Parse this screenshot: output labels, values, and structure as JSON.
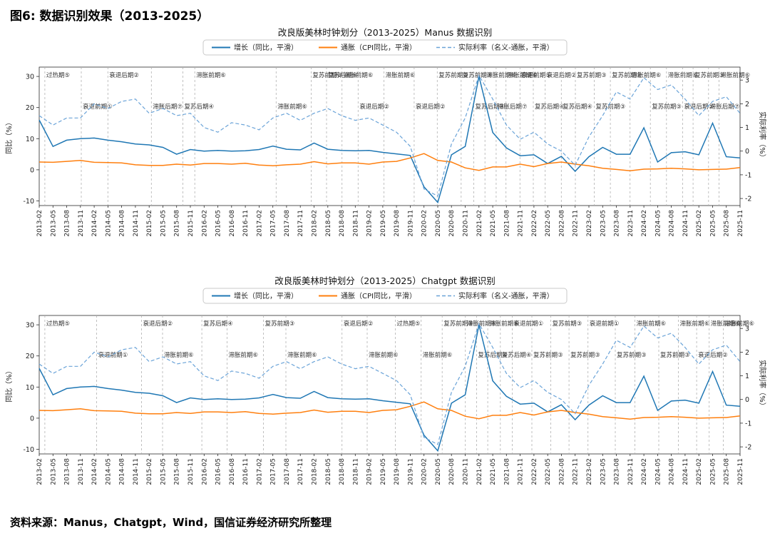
{
  "figure_title": "图6: 数据识别效果（2013-2025）",
  "source": "资料来源：Manus，Chatgpt，Wind，国信证券经济研究所整理",
  "legend": [
    {
      "label": "增长（同比，平滑）",
      "color": "#1f77b4",
      "style": "solid"
    },
    {
      "label": "通胀（CPI同比，平滑）",
      "color": "#ff7f0e",
      "style": "solid"
    },
    {
      "label": "实际利率（名义-通胀，平滑）",
      "color": "#6aa3d8",
      "style": "dashed"
    }
  ],
  "axis": {
    "left_label": "同比（%）",
    "right_label": "实际利率（%）",
    "left_ticks": [
      30,
      20,
      10,
      0,
      -10
    ],
    "right_ticks": [
      3,
      2,
      1,
      0,
      -1,
      -2
    ]
  },
  "chart_data": [
    {
      "type": "line",
      "title": "改良版美林时钟划分（2013-2025）Manus 数据识别",
      "ylim_left": [
        -11.5,
        33
      ],
      "ylim_right": [
        -2.3,
        3.55
      ],
      "x": [
        "2013-02",
        "2013-05",
        "2013-08",
        "2013-11",
        "2014-02",
        "2014-05",
        "2014-08",
        "2014-11",
        "2015-02",
        "2015-05",
        "2015-08",
        "2015-11",
        "2016-02",
        "2016-05",
        "2016-08",
        "2016-11",
        "2017-02",
        "2017-05",
        "2017-08",
        "2017-11",
        "2018-02",
        "2018-05",
        "2018-08",
        "2018-11",
        "2019-02",
        "2019-05",
        "2019-08",
        "2019-11",
        "2020-02",
        "2020-05",
        "2020-08",
        "2020-11",
        "2021-02",
        "2021-05",
        "2021-08",
        "2021-11",
        "2022-02",
        "2022-05",
        "2022-08",
        "2022-11",
        "2023-02",
        "2023-05",
        "2023-08",
        "2023-11",
        "2024-02",
        "2024-05",
        "2024-08",
        "2024-11",
        "2025-02",
        "2025-05",
        "2025-08",
        "2025-11"
      ],
      "series": [
        {
          "key": "growth",
          "name": "增长（同比，平滑）",
          "axis": "left",
          "style": "solid",
          "color": "#1f77b4",
          "values": [
            16,
            7.5,
            9.5,
            10,
            10.2,
            9.5,
            9,
            8.3,
            8,
            7.2,
            5,
            6.5,
            6,
            6.2,
            6,
            6.1,
            6.5,
            7.6,
            6.6,
            6.4,
            8.6,
            6.6,
            6.2,
            6.1,
            6.2,
            5.6,
            5.1,
            4.6,
            -5.5,
            -10.5,
            4.8,
            7.5,
            30,
            12,
            7,
            4.5,
            4.8,
            2,
            4.3,
            -0.5,
            4.2,
            7.2,
            5,
            5,
            13.5,
            2.5,
            5.5,
            5.8,
            4.8,
            15,
            4.2,
            3.8
          ]
        },
        {
          "key": "inflation",
          "name": "通胀（CPI同比，平滑）",
          "axis": "left",
          "style": "solid",
          "color": "#ff7f0e",
          "values": [
            2.5,
            2.4,
            2.7,
            3.0,
            2.4,
            2.3,
            2.2,
            1.6,
            1.4,
            1.4,
            1.8,
            1.5,
            2.0,
            2.0,
            1.8,
            2.1,
            1.5,
            1.3,
            1.6,
            1.8,
            2.6,
            1.9,
            2.2,
            2.2,
            1.8,
            2.5,
            2.7,
            3.8,
            5.2,
            3.0,
            2.5,
            0.6,
            -0.2,
            0.9,
            0.9,
            1.8,
            1.0,
            2.0,
            2.5,
            1.8,
            1.3,
            0.5,
            0.1,
            -0.3,
            0.2,
            0.3,
            0.5,
            0.3,
            0.0,
            0.1,
            0.2,
            0.7
          ]
        },
        {
          "key": "real_rate",
          "name": "实际利率（名义-通胀，平滑）",
          "axis": "right",
          "style": "dashed",
          "color": "#6aa3d8",
          "values": [
            1.5,
            1.1,
            1.4,
            1.4,
            2.0,
            1.8,
            2.1,
            2.2,
            1.6,
            1.8,
            1.5,
            1.6,
            1.0,
            0.8,
            1.2,
            1.1,
            0.9,
            1.4,
            1.6,
            1.3,
            1.6,
            1.8,
            1.5,
            1.3,
            1.4,
            1.1,
            0.8,
            0.2,
            -1.6,
            -1.9,
            0.3,
            1.4,
            3.2,
            2.2,
            1.1,
            0.5,
            0.8,
            0.3,
            0.0,
            -0.6,
            0.6,
            1.5,
            2.5,
            2.2,
            3.1,
            2.6,
            2.8,
            2.2,
            1.5,
            2.1,
            2.3,
            1.6
          ]
        }
      ],
      "annotations": [
        {
          "x": 0.008,
          "level": 1,
          "label": "过热期⑤"
        },
        {
          "x": 0.06,
          "level": 2,
          "label": "衰退前期①"
        },
        {
          "x": 0.098,
          "level": 1,
          "label": "衰退后期②"
        },
        {
          "x": 0.16,
          "level": 2,
          "label": "滞胀后期⑦"
        },
        {
          "x": 0.205,
          "level": 2,
          "label": "复苏后期④"
        },
        {
          "x": 0.222,
          "level": 1,
          "label": "滞胀前期⑥"
        },
        {
          "x": 0.338,
          "level": 2,
          "label": "滞胀前期⑥"
        },
        {
          "x": 0.388,
          "level": 1,
          "label": "复苏前期③"
        },
        {
          "x": 0.41,
          "level": 1,
          "label": "复苏后期④"
        },
        {
          "x": 0.432,
          "level": 1,
          "label": "滞胀前期⑥"
        },
        {
          "x": 0.455,
          "level": 2,
          "label": "衰退后期②"
        },
        {
          "x": 0.492,
          "level": 1,
          "label": "滞胀前期⑥"
        },
        {
          "x": 0.535,
          "level": 2,
          "label": "衰退后期②"
        },
        {
          "x": 0.568,
          "level": 1,
          "label": "复苏前期③"
        },
        {
          "x": 0.602,
          "level": 1,
          "label": "复苏前期③"
        },
        {
          "x": 0.62,
          "level": 2,
          "label": "复苏后期④"
        },
        {
          "x": 0.636,
          "level": 1,
          "label": "滞胀前期⑥"
        },
        {
          "x": 0.652,
          "level": 2,
          "label": "滞胀后期⑦"
        },
        {
          "x": 0.666,
          "level": 1,
          "label": "滞胀前期⑥"
        },
        {
          "x": 0.686,
          "level": 1,
          "label": "衰退前期①"
        },
        {
          "x": 0.705,
          "level": 2,
          "label": "复苏后期④"
        },
        {
          "x": 0.722,
          "level": 1,
          "label": "衰退后期②"
        },
        {
          "x": 0.745,
          "level": 2,
          "label": "复苏后期④"
        },
        {
          "x": 0.765,
          "level": 1,
          "label": "复苏前期③"
        },
        {
          "x": 0.792,
          "level": 2,
          "label": "复苏前期③"
        },
        {
          "x": 0.815,
          "level": 1,
          "label": "复苏前期③"
        },
        {
          "x": 0.843,
          "level": 1,
          "label": "滞胀前期⑥"
        },
        {
          "x": 0.872,
          "level": 2,
          "label": "复苏前期③"
        },
        {
          "x": 0.895,
          "level": 1,
          "label": "滞胀前期⑥"
        },
        {
          "x": 0.918,
          "level": 2,
          "label": "衰退后期②"
        },
        {
          "x": 0.933,
          "level": 1,
          "label": "复苏前期③"
        },
        {
          "x": 0.955,
          "level": 2,
          "label": "滞胀后期⑦"
        },
        {
          "x": 0.97,
          "level": 1,
          "label": "滞胀前期⑥"
        }
      ]
    },
    {
      "type": "line",
      "title": "改良版美林时钟划分（2013-2025）Chatgpt 数据识别",
      "ylim_left": [
        -11.5,
        33
      ],
      "ylim_right": [
        -2.3,
        3.55
      ],
      "x": [
        "2013-02",
        "2013-05",
        "2013-08",
        "2013-11",
        "2014-02",
        "2014-05",
        "2014-08",
        "2014-11",
        "2015-02",
        "2015-05",
        "2015-08",
        "2015-11",
        "2016-02",
        "2016-05",
        "2016-08",
        "2016-11",
        "2017-02",
        "2017-05",
        "2017-08",
        "2017-11",
        "2018-02",
        "2018-05",
        "2018-08",
        "2018-11",
        "2019-02",
        "2019-05",
        "2019-08",
        "2019-11",
        "2020-02",
        "2020-05",
        "2020-08",
        "2020-11",
        "2021-02",
        "2021-05",
        "2021-08",
        "2021-11",
        "2022-02",
        "2022-05",
        "2022-08",
        "2022-11",
        "2023-02",
        "2023-05",
        "2023-08",
        "2023-11",
        "2024-02",
        "2024-05",
        "2024-08",
        "2024-11",
        "2025-02",
        "2025-05",
        "2025-08",
        "2025-11"
      ],
      "series": [
        {
          "key": "growth",
          "name": "增长（同比，平滑）",
          "axis": "left",
          "style": "solid",
          "color": "#1f77b4",
          "values": [
            16,
            7.5,
            9.5,
            10,
            10.2,
            9.5,
            9,
            8.3,
            8,
            7.2,
            5,
            6.5,
            6,
            6.2,
            6,
            6.1,
            6.5,
            7.6,
            6.6,
            6.4,
            8.6,
            6.6,
            6.2,
            6.1,
            6.2,
            5.6,
            5.1,
            4.6,
            -5.5,
            -10.5,
            4.8,
            7.5,
            30,
            12,
            7,
            4.5,
            4.8,
            2,
            4.3,
            -0.5,
            4.2,
            7.2,
            5,
            5,
            13.5,
            2.5,
            5.5,
            5.8,
            4.8,
            15,
            4.2,
            3.8
          ]
        },
        {
          "key": "inflation",
          "name": "通胀（CPI同比，平滑）",
          "axis": "left",
          "style": "solid",
          "color": "#ff7f0e",
          "values": [
            2.5,
            2.4,
            2.7,
            3.0,
            2.4,
            2.3,
            2.2,
            1.6,
            1.4,
            1.4,
            1.8,
            1.5,
            2.0,
            2.0,
            1.8,
            2.1,
            1.5,
            1.3,
            1.6,
            1.8,
            2.6,
            1.9,
            2.2,
            2.2,
            1.8,
            2.5,
            2.7,
            3.8,
            5.2,
            3.0,
            2.5,
            0.6,
            -0.2,
            0.9,
            0.9,
            1.8,
            1.0,
            2.0,
            2.5,
            1.8,
            1.3,
            0.5,
            0.1,
            -0.3,
            0.2,
            0.3,
            0.5,
            0.3,
            0.0,
            0.1,
            0.2,
            0.7
          ]
        },
        {
          "key": "real_rate",
          "name": "实际利率（名义-通胀，平滑）",
          "axis": "right",
          "style": "dashed",
          "color": "#6aa3d8",
          "values": [
            1.5,
            1.1,
            1.4,
            1.4,
            2.0,
            1.8,
            2.1,
            2.2,
            1.6,
            1.8,
            1.5,
            1.6,
            1.0,
            0.8,
            1.2,
            1.1,
            0.9,
            1.4,
            1.6,
            1.3,
            1.6,
            1.8,
            1.5,
            1.3,
            1.4,
            1.1,
            0.8,
            0.2,
            -1.6,
            -1.9,
            0.3,
            1.4,
            3.2,
            2.2,
            1.1,
            0.5,
            0.8,
            0.3,
            0.0,
            -0.6,
            0.6,
            1.5,
            2.5,
            2.2,
            3.1,
            2.6,
            2.8,
            2.2,
            1.5,
            2.1,
            2.3,
            1.6
          ]
        }
      ],
      "annotations": [
        {
          "x": 0.008,
          "level": 1,
          "label": "过热期⑤"
        },
        {
          "x": 0.082,
          "level": 2,
          "label": "衰退前期①"
        },
        {
          "x": 0.146,
          "level": 1,
          "label": "衰退后期②"
        },
        {
          "x": 0.176,
          "level": 2,
          "label": "滞胀前期⑥"
        },
        {
          "x": 0.232,
          "level": 1,
          "label": "复苏后期④"
        },
        {
          "x": 0.268,
          "level": 2,
          "label": "滞胀前期⑥"
        },
        {
          "x": 0.32,
          "level": 1,
          "label": "复苏前期③"
        },
        {
          "x": 0.352,
          "level": 2,
          "label": "滞胀前期⑥"
        },
        {
          "x": 0.432,
          "level": 1,
          "label": "衰退后期②"
        },
        {
          "x": 0.468,
          "level": 2,
          "label": "滞胀前期⑥"
        },
        {
          "x": 0.508,
          "level": 1,
          "label": "过热期⑤"
        },
        {
          "x": 0.545,
          "level": 2,
          "label": "滞胀前期⑥"
        },
        {
          "x": 0.575,
          "level": 1,
          "label": "复苏前期③"
        },
        {
          "x": 0.608,
          "level": 1,
          "label": "滞胀前期⑥"
        },
        {
          "x": 0.624,
          "level": 2,
          "label": "复苏后期④"
        },
        {
          "x": 0.64,
          "level": 1,
          "label": "滞胀前期⑥"
        },
        {
          "x": 0.658,
          "level": 2,
          "label": "复苏后期④"
        },
        {
          "x": 0.675,
          "level": 1,
          "label": "衰退前期①"
        },
        {
          "x": 0.703,
          "level": 2,
          "label": "复苏前期③"
        },
        {
          "x": 0.73,
          "level": 1,
          "label": "复苏前期③"
        },
        {
          "x": 0.756,
          "level": 2,
          "label": "复苏前期③"
        },
        {
          "x": 0.783,
          "level": 1,
          "label": "衰退前期①"
        },
        {
          "x": 0.822,
          "level": 2,
          "label": "复苏前期③"
        },
        {
          "x": 0.85,
          "level": 1,
          "label": "滞胀前期⑥"
        },
        {
          "x": 0.884,
          "level": 2,
          "label": "复苏前期③"
        },
        {
          "x": 0.912,
          "level": 1,
          "label": "滞胀前期⑥"
        },
        {
          "x": 0.938,
          "level": 2,
          "label": "衰退后期②"
        },
        {
          "x": 0.956,
          "level": 1,
          "label": "滞胀前期⑥"
        },
        {
          "x": 0.976,
          "level": 1,
          "label": "滞胀前期⑥"
        }
      ]
    }
  ]
}
